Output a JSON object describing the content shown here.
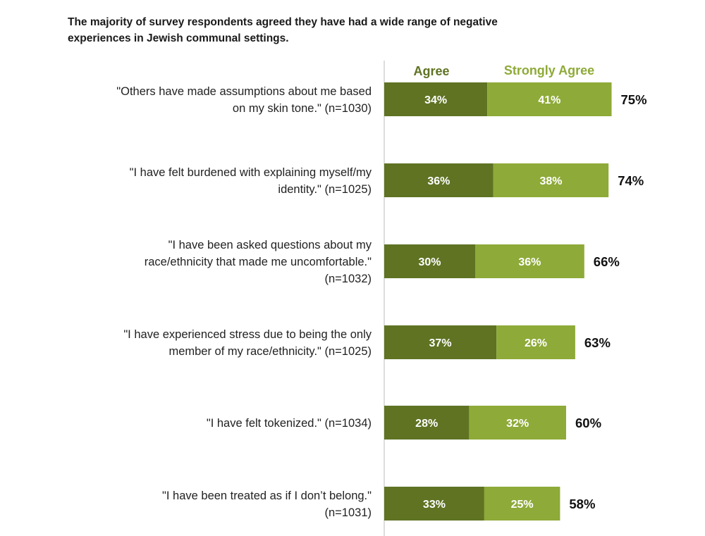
{
  "title": "The majority of survey respondents agreed they have had a wide range of negative experiences in Jewish communal settings.",
  "colors": {
    "agree": "#5f7323",
    "strongly_agree": "#8eaa38",
    "axis": "#bbbbbb"
  },
  "legend": {
    "agree": "Agree",
    "strongly_agree": "Strongly Agree"
  },
  "chart_data": {
    "type": "bar",
    "orientation": "horizontal",
    "stacked": true,
    "title": "The majority of survey respondents agreed they have had a wide range of negative experiences in Jewish communal settings.",
    "categories": [
      "\"Others have made assumptions about me based on my skin tone.\" (n=1030)",
      "\"I have felt burdened with explaining myself/my identity.\" (n=1025)",
      "\"I have been asked questions about my race/ethnicity that made me uncomfortable.\" (n=1032)",
      "\"I have experienced stress due to being the only member of my race/ethnicity.\" (n=1025)",
      "\"I have felt tokenized.\" (n=1034)",
      "\"I have been treated as if I don’t belong.\" (n=1031)"
    ],
    "category_lines": [
      [
        "\"Others have made assumptions about me based",
        "on my skin tone.\" (n=1030)"
      ],
      [
        "\"I have felt burdened with explaining myself/my",
        "identity.\" (n=1025)"
      ],
      [
        "\"I have been asked questions about my",
        "race/ethnicity that made me uncomfortable.\"",
        "(n=1032)"
      ],
      [
        "\"I have experienced stress due to being the only",
        "member of my race/ethnicity.\" (n=1025)"
      ],
      [
        "\"I have felt tokenized.\" (n=1034)"
      ],
      [
        "\"I have been treated as if I don’t belong.\"",
        "(n=1031)"
      ]
    ],
    "series": [
      {
        "name": "Agree",
        "values": [
          34,
          36,
          30,
          37,
          28,
          33
        ]
      },
      {
        "name": "Strongly Agree",
        "values": [
          41,
          38,
          36,
          26,
          32,
          25
        ]
      }
    ],
    "totals": [
      75,
      74,
      66,
      63,
      60,
      58
    ],
    "value_suffix": "%",
    "legend_position": "top",
    "grid": false
  }
}
